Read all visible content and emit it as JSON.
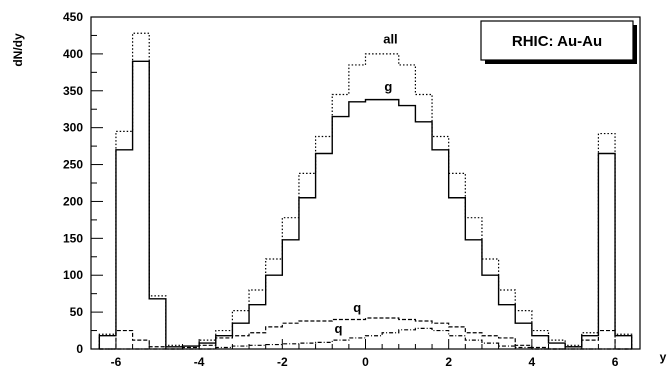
{
  "chart_data": {
    "type": "histogram",
    "xlabel": "y",
    "ylabel": "dN/dy",
    "xlim": [
      -6.6,
      6.6
    ],
    "ylim": [
      0,
      450
    ],
    "xticks": [
      -6,
      -4,
      -2,
      0,
      2,
      4,
      6
    ],
    "yticks": [
      0,
      50,
      100,
      150,
      200,
      250,
      300,
      350,
      400,
      450
    ],
    "bin_width": 0.4,
    "bin_centers": [
      -6.2,
      -5.8,
      -5.4,
      -5.0,
      -4.6,
      -4.2,
      -3.8,
      -3.4,
      -3.0,
      -2.6,
      -2.2,
      -1.8,
      -1.4,
      -1.0,
      -0.6,
      -0.2,
      0.2,
      0.6,
      1.0,
      1.4,
      1.8,
      2.2,
      2.6,
      3.0,
      3.4,
      3.8,
      4.2,
      4.6,
      5.0,
      5.4,
      5.8,
      6.2
    ],
    "series": [
      {
        "name": "all",
        "style": "dotted",
        "values": [
          20,
          295,
          428,
          72,
          5,
          4,
          12,
          25,
          52,
          80,
          122,
          178,
          238,
          288,
          345,
          385,
          400,
          400,
          385,
          345,
          288,
          238,
          178,
          122,
          80,
          52,
          25,
          12,
          5,
          22,
          292,
          20
        ]
      },
      {
        "name": "g",
        "style": "solid",
        "values": [
          18,
          270,
          390,
          68,
          3,
          4,
          8,
          18,
          35,
          60,
          100,
          148,
          205,
          265,
          315,
          335,
          338,
          338,
          330,
          308,
          270,
          205,
          148,
          100,
          60,
          35,
          18,
          8,
          3,
          18,
          265,
          18
        ]
      },
      {
        "name": "q",
        "style": "dashed",
        "values": [
          0,
          25,
          12,
          3,
          0,
          2,
          5,
          15,
          18,
          22,
          30,
          35,
          38,
          38,
          40,
          40,
          42,
          42,
          40,
          38,
          35,
          30,
          22,
          18,
          15,
          5,
          2,
          0,
          3,
          12,
          25,
          0
        ]
      },
      {
        "name": "q",
        "style": "dashdot",
        "values": [
          0,
          0,
          0,
          0,
          0,
          0,
          0,
          2,
          4,
          5,
          6,
          7,
          8,
          9,
          12,
          15,
          18,
          22,
          26,
          28,
          25,
          18,
          12,
          8,
          4,
          2,
          0,
          0,
          0,
          0,
          0,
          0
        ]
      }
    ],
    "annotations": [
      {
        "text": "all",
        "x": 0.6,
        "y": 414
      },
      {
        "text": "g",
        "x": 0.55,
        "y": 350
      },
      {
        "text": "q",
        "x": -0.2,
        "y": 50
      },
      {
        "text": "q",
        "x": -0.65,
        "y": 22
      }
    ],
    "legend": {
      "text": "RHIC: Au-Au",
      "placement": "top-right"
    }
  }
}
